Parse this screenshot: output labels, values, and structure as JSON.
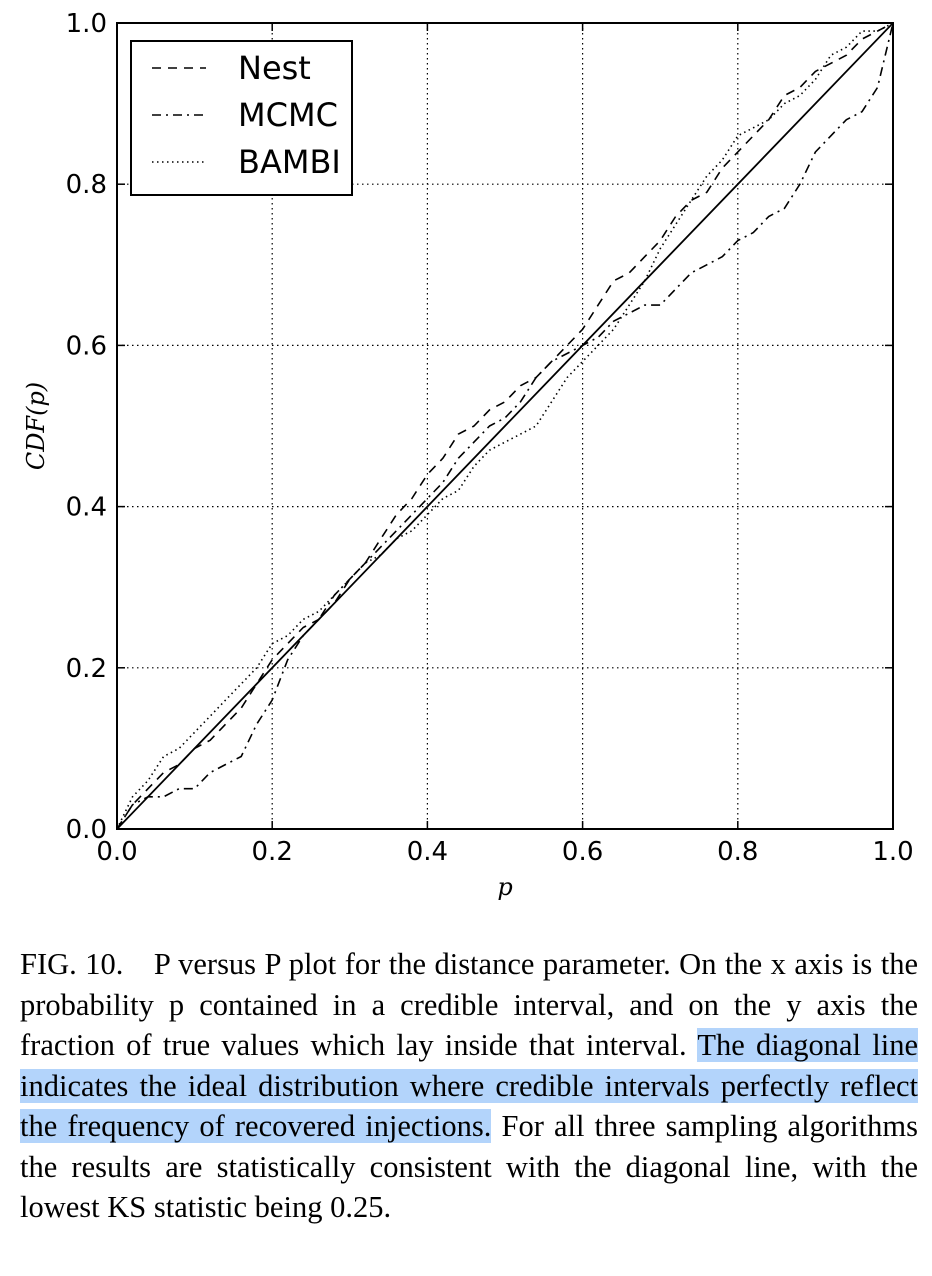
{
  "chart_data": {
    "type": "line",
    "title": "",
    "xlabel": "p",
    "ylabel": "CDF(p)",
    "xlim": [
      0.0,
      1.0
    ],
    "ylim": [
      0.0,
      1.0
    ],
    "xticks": [
      "0.0",
      "0.2",
      "0.4",
      "0.6",
      "0.8",
      "1.0"
    ],
    "yticks": [
      "0.0",
      "0.2",
      "0.4",
      "0.6",
      "0.8",
      "1.0"
    ],
    "grid": true,
    "legend_position": "top-left",
    "series": [
      {
        "name": "Nest",
        "style": "dashed",
        "color": "#000000",
        "x": [
          0.0,
          0.02,
          0.04,
          0.06,
          0.08,
          0.1,
          0.12,
          0.14,
          0.16,
          0.18,
          0.2,
          0.22,
          0.24,
          0.26,
          0.28,
          0.3,
          0.32,
          0.34,
          0.36,
          0.38,
          0.4,
          0.42,
          0.44,
          0.46,
          0.48,
          0.5,
          0.52,
          0.54,
          0.56,
          0.58,
          0.6,
          0.62,
          0.64,
          0.66,
          0.68,
          0.7,
          0.72,
          0.74,
          0.76,
          0.78,
          0.8,
          0.82,
          0.84,
          0.86,
          0.88,
          0.9,
          0.92,
          0.94,
          0.96,
          0.98,
          1.0
        ],
        "y": [
          0.0,
          0.03,
          0.05,
          0.07,
          0.08,
          0.1,
          0.11,
          0.13,
          0.15,
          0.18,
          0.21,
          0.23,
          0.25,
          0.26,
          0.28,
          0.31,
          0.33,
          0.36,
          0.39,
          0.41,
          0.44,
          0.46,
          0.49,
          0.5,
          0.52,
          0.53,
          0.55,
          0.56,
          0.58,
          0.6,
          0.62,
          0.65,
          0.68,
          0.69,
          0.71,
          0.73,
          0.76,
          0.78,
          0.79,
          0.82,
          0.84,
          0.86,
          0.88,
          0.91,
          0.92,
          0.94,
          0.95,
          0.96,
          0.98,
          0.99,
          1.0
        ]
      },
      {
        "name": "MCMC",
        "style": "dashdot",
        "color": "#000000",
        "x": [
          0.0,
          0.02,
          0.04,
          0.06,
          0.08,
          0.1,
          0.12,
          0.14,
          0.16,
          0.18,
          0.2,
          0.22,
          0.24,
          0.26,
          0.28,
          0.3,
          0.32,
          0.34,
          0.36,
          0.38,
          0.4,
          0.42,
          0.44,
          0.46,
          0.48,
          0.5,
          0.52,
          0.54,
          0.56,
          0.58,
          0.6,
          0.62,
          0.64,
          0.66,
          0.68,
          0.7,
          0.72,
          0.74,
          0.76,
          0.78,
          0.8,
          0.82,
          0.84,
          0.86,
          0.88,
          0.9,
          0.92,
          0.94,
          0.96,
          0.98,
          1.0
        ],
        "y": [
          0.0,
          0.03,
          0.04,
          0.04,
          0.05,
          0.05,
          0.07,
          0.08,
          0.09,
          0.13,
          0.16,
          0.21,
          0.24,
          0.26,
          0.29,
          0.31,
          0.33,
          0.35,
          0.37,
          0.39,
          0.41,
          0.43,
          0.46,
          0.48,
          0.5,
          0.51,
          0.53,
          0.56,
          0.58,
          0.59,
          0.6,
          0.61,
          0.63,
          0.64,
          0.65,
          0.65,
          0.67,
          0.69,
          0.7,
          0.71,
          0.73,
          0.74,
          0.76,
          0.77,
          0.8,
          0.84,
          0.86,
          0.88,
          0.89,
          0.92,
          1.0
        ]
      },
      {
        "name": "BAMBI",
        "style": "dotted",
        "color": "#000000",
        "x": [
          0.0,
          0.02,
          0.04,
          0.06,
          0.08,
          0.1,
          0.12,
          0.14,
          0.16,
          0.18,
          0.2,
          0.22,
          0.24,
          0.26,
          0.28,
          0.3,
          0.32,
          0.34,
          0.36,
          0.38,
          0.4,
          0.42,
          0.44,
          0.46,
          0.48,
          0.5,
          0.52,
          0.54,
          0.56,
          0.58,
          0.6,
          0.62,
          0.64,
          0.66,
          0.68,
          0.7,
          0.72,
          0.74,
          0.76,
          0.78,
          0.8,
          0.82,
          0.84,
          0.86,
          0.88,
          0.9,
          0.92,
          0.94,
          0.96,
          0.98,
          1.0
        ],
        "y": [
          0.0,
          0.04,
          0.06,
          0.09,
          0.1,
          0.12,
          0.14,
          0.16,
          0.18,
          0.2,
          0.23,
          0.24,
          0.26,
          0.27,
          0.29,
          0.31,
          0.33,
          0.34,
          0.36,
          0.37,
          0.39,
          0.41,
          0.42,
          0.45,
          0.47,
          0.48,
          0.49,
          0.5,
          0.53,
          0.56,
          0.58,
          0.6,
          0.62,
          0.65,
          0.68,
          0.72,
          0.75,
          0.78,
          0.81,
          0.83,
          0.86,
          0.87,
          0.88,
          0.9,
          0.91,
          0.93,
          0.96,
          0.97,
          0.99,
          0.99,
          1.0
        ]
      },
      {
        "name": "",
        "style": "solid",
        "color": "#000000",
        "x": [
          0.0,
          1.0
        ],
        "y": [
          0.0,
          1.0
        ]
      }
    ]
  },
  "caption": {
    "label": "FIG. 10.",
    "text_before": "P versus P plot for the distance parameter. On the x axis is the probability p contained in a credible interval, and on the y axis the fraction of true values which lay inside that interval.",
    "text_highlight": "The diagonal line indicates the ideal distribution where credible intervals perfectly reflect the frequency of recovered injections.",
    "text_after": "For all three sampling algorithms the results are statistically consistent with the diagonal line, with the lowest KS statistic being 0.25.",
    "highlight_color": "#b3d4fb"
  }
}
